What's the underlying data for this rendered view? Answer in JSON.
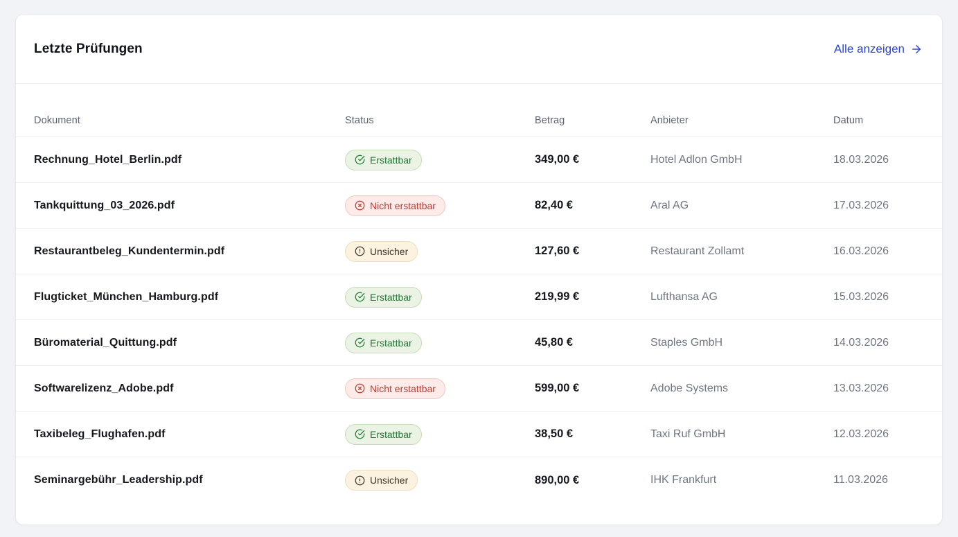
{
  "card": {
    "title": "Letzte Prüfungen",
    "view_all": {
      "label": "Alle anzeigen"
    }
  },
  "table": {
    "columns": {
      "document": "Dokument",
      "status": "Status",
      "amount": "Betrag",
      "vendor": "Anbieter",
      "date": "Datum"
    },
    "rows": [
      {
        "document": "Rechnung_Hotel_Berlin.pdf",
        "status": "Erstattbar",
        "status_type": "success",
        "amount": "349,00 €",
        "vendor": "Hotel Adlon GmbH",
        "date": "18.03.2026"
      },
      {
        "document": "Tankquittung_03_2026.pdf",
        "status": "Nicht erstattbar",
        "status_type": "error",
        "amount": "82,40 €",
        "vendor": "Aral AG",
        "date": "17.03.2026"
      },
      {
        "document": "Restaurantbeleg_Kundentermin.pdf",
        "status": "Unsicher",
        "status_type": "warning",
        "amount": "127,60 €",
        "vendor": "Restaurant Zollamt",
        "date": "16.03.2026"
      },
      {
        "document": "Flugticket_München_Hamburg.pdf",
        "status": "Erstattbar",
        "status_type": "success",
        "amount": "219,99 €",
        "vendor": "Lufthansa AG",
        "date": "15.03.2026"
      },
      {
        "document": "Büromaterial_Quittung.pdf",
        "status": "Erstattbar",
        "status_type": "success",
        "amount": "45,80 €",
        "vendor": "Staples GmbH",
        "date": "14.03.2026"
      },
      {
        "document": "Softwarelizenz_Adobe.pdf",
        "status": "Nicht erstattbar",
        "status_type": "error",
        "amount": "599,00 €",
        "vendor": "Adobe Systems",
        "date": "13.03.2026"
      },
      {
        "document": "Taxibeleg_Flughafen.pdf",
        "status": "Erstattbar",
        "status_type": "success",
        "amount": "38,50 €",
        "vendor": "Taxi Ruf GmbH",
        "date": "12.03.2026"
      },
      {
        "document": "Seminargebühr_Leadership.pdf",
        "status": "Unsicher",
        "status_type": "warning",
        "amount": "890,00 €",
        "vendor": "IHK Frankfurt",
        "date": "11.03.2026"
      }
    ]
  },
  "status_styles": {
    "success": {
      "text": "#1e7a33",
      "bg": "#eaf3e4",
      "border": "#c5dcb7",
      "icon": "check-circle-icon"
    },
    "error": {
      "text": "#c23a30",
      "bg": "#fcebe8",
      "border": "#f4c8c1",
      "icon": "x-circle-icon"
    },
    "warning": {
      "text": "#3b372b",
      "bg": "#fbf3df",
      "border": "#eedfba",
      "icon": "alert-circle-icon"
    }
  },
  "colors": {
    "link_blue": "#2946e4",
    "page_background": "#f1f3f7"
  }
}
